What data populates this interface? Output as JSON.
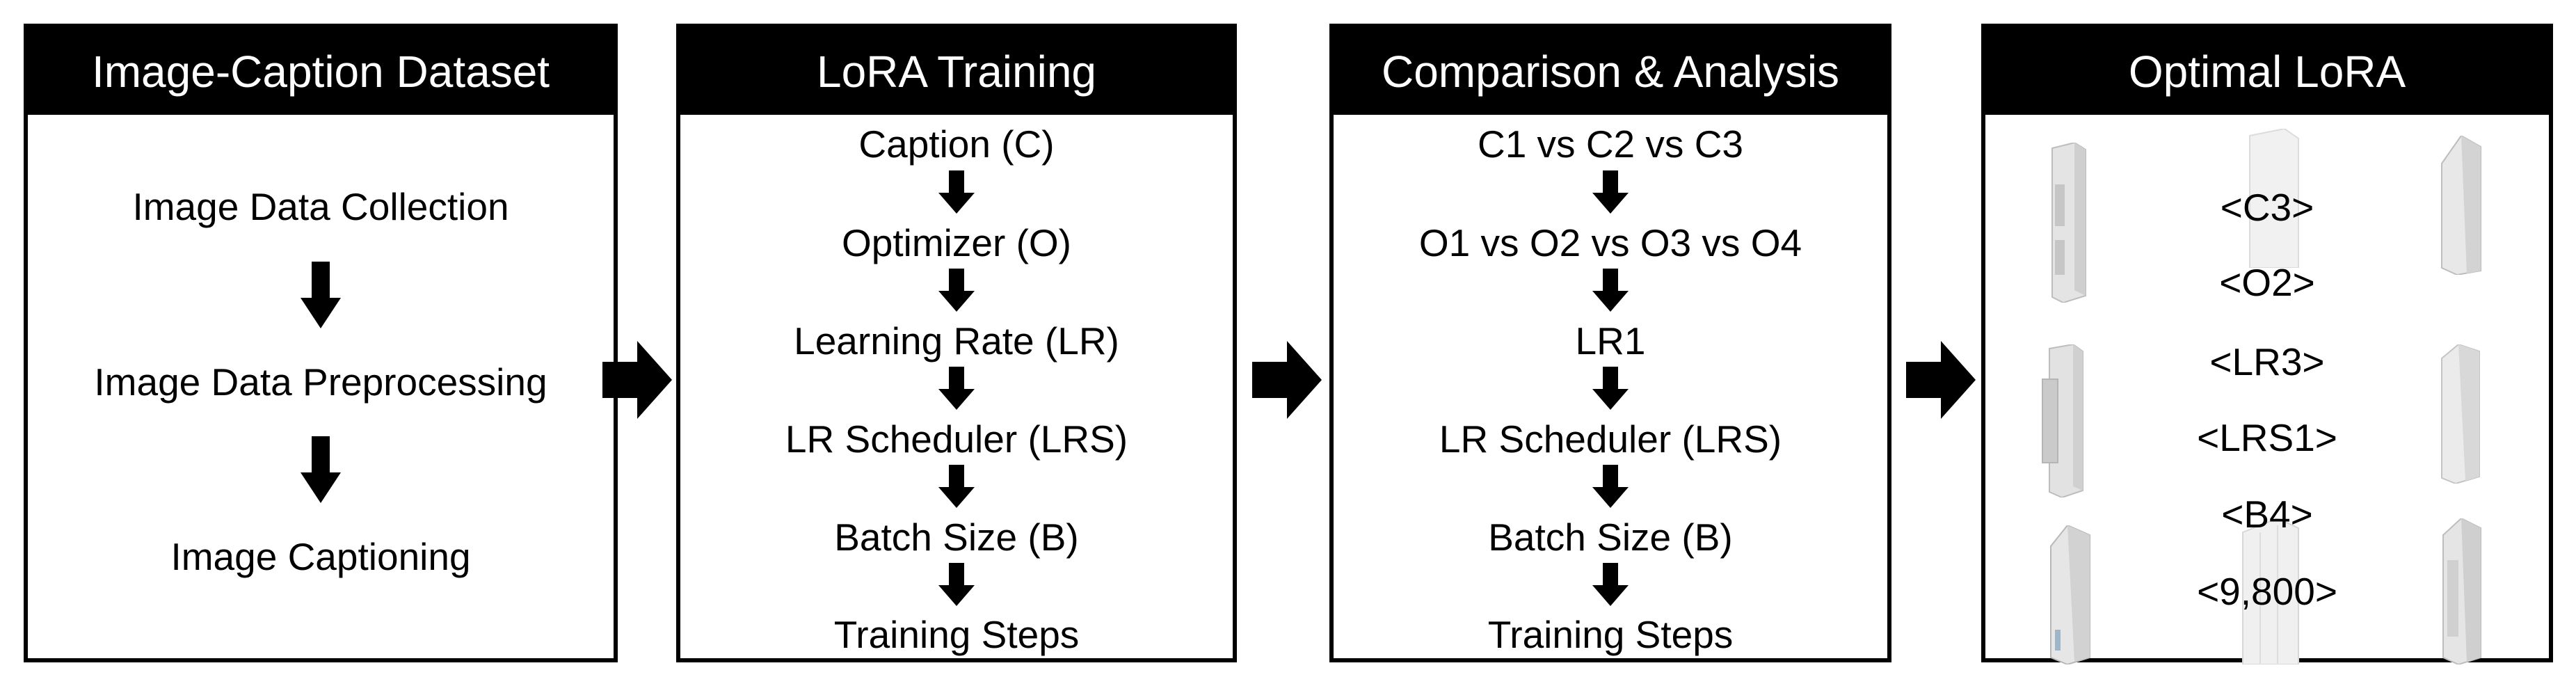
{
  "panels": [
    {
      "title": "Image-Caption Dataset",
      "steps": [
        "Image Data Collection",
        "Image Data Preprocessing",
        "Image Captioning"
      ]
    },
    {
      "title": "LoRA Training",
      "steps": [
        "Caption (C)",
        "Optimizer (O)",
        "Learning Rate (LR)",
        "LR Scheduler (LRS)",
        "Batch Size (B)",
        "Training Steps"
      ]
    },
    {
      "title": "Comparison & Analysis",
      "steps": [
        "C1 vs C2 vs C3",
        "O1 vs O2 vs O3 vs O4",
        "LR1",
        "LR Scheduler (LRS)",
        "Batch Size (B)",
        "Training Steps"
      ]
    },
    {
      "title": "Optimal LoRA",
      "params": [
        "<C3>",
        "<O2>",
        "<LR3>",
        "<LRS1>",
        "<B4>",
        "<9,800>"
      ]
    }
  ],
  "icons": {
    "flow_arrow": "right-arrow-icon",
    "step_arrow": "down-arrow-icon",
    "building": "building-render-icon"
  },
  "colors": {
    "header_bg": "#000000",
    "header_text": "#ffffff",
    "border": "#000000",
    "building_tone": "#d6d6d6"
  }
}
